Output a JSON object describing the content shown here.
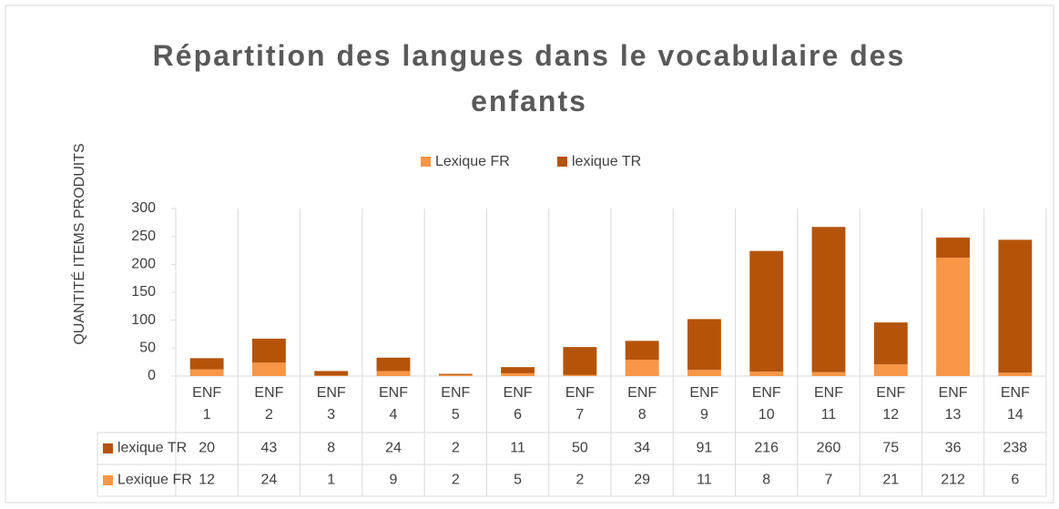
{
  "chart_data": {
    "type": "stacked_bar",
    "title": "Répartition des langues dans le vocabulaire des enfants",
    "y_label": "QUANTITÉ ITEMS PRODUITS",
    "categories": [
      "ENF1",
      "ENF2",
      "ENF3",
      "ENF4",
      "ENF5",
      "ENF6",
      "ENF7",
      "ENF8",
      "ENF9",
      "ENF10",
      "ENF11",
      "ENF12",
      "ENF13",
      "ENF14"
    ],
    "series": [
      {
        "name": "Lexique FR",
        "color": "#f79646",
        "values": [
          12,
          24,
          1,
          9,
          2,
          5,
          2,
          29,
          11,
          8,
          7,
          21,
          212,
          6
        ]
      },
      {
        "name": "lexique TR",
        "color": "#b5530a",
        "values": [
          20,
          43,
          8,
          24,
          2,
          11,
          50,
          34,
          91,
          216,
          260,
          75,
          36,
          238
        ]
      }
    ],
    "ylim": [
      0,
      300
    ],
    "yticks": [
      0,
      50,
      100,
      150,
      200,
      250,
      300
    ],
    "legend": "top"
  }
}
